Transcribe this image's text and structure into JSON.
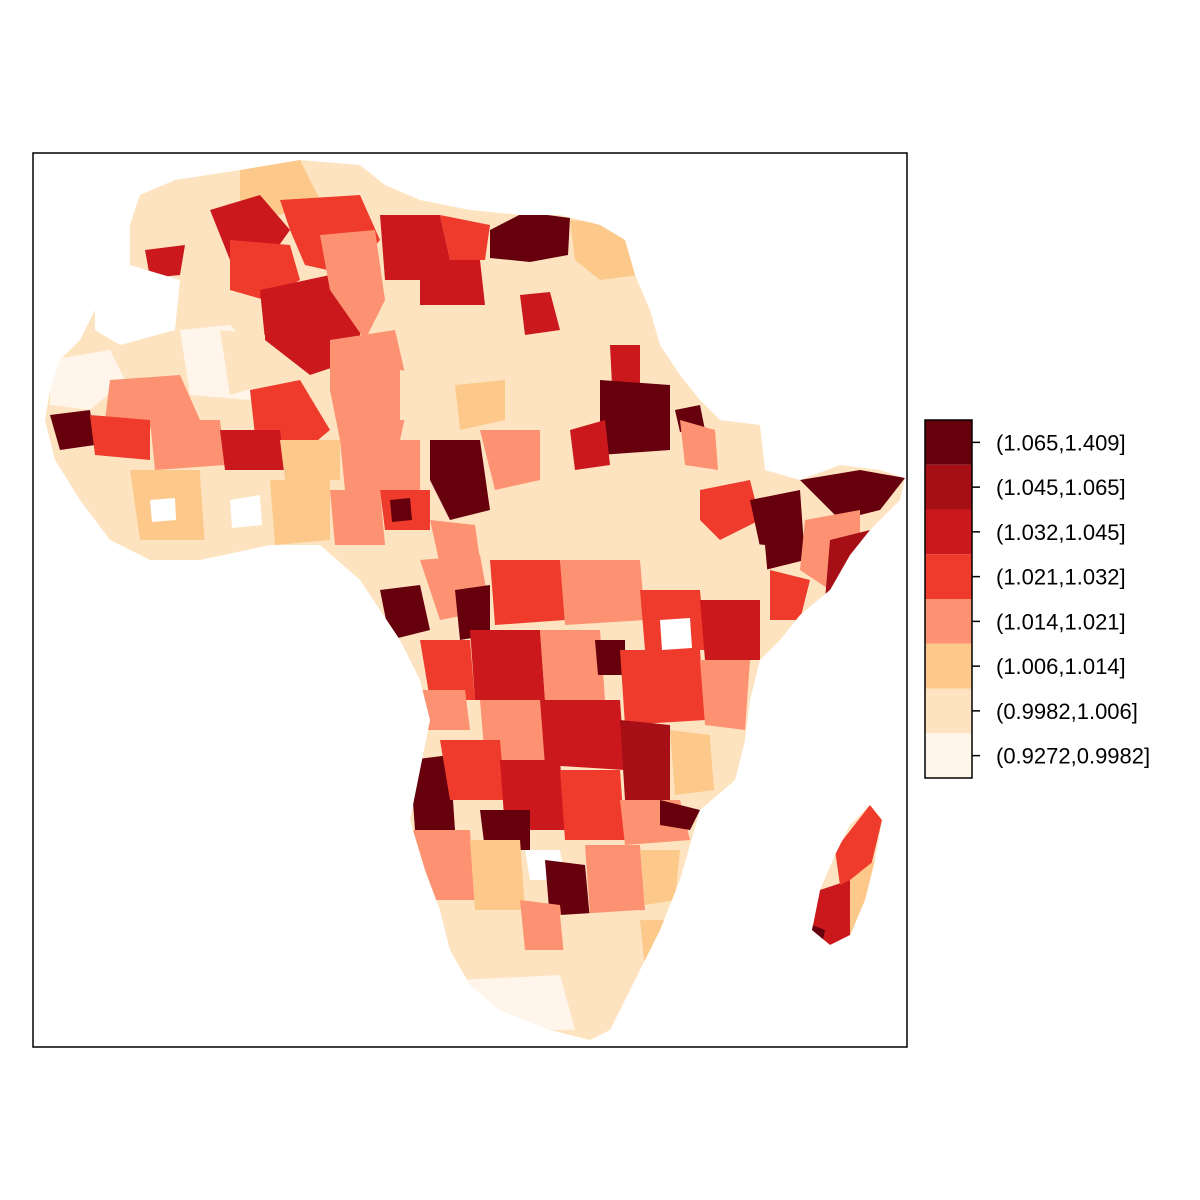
{
  "map": {
    "type": "choropleth",
    "region": "Africa",
    "unit": "sub-national administrative regions"
  },
  "legend": {
    "placement": "right",
    "order": "high-to-low",
    "classes": [
      {
        "label": "(1.065,1.409]",
        "color": "#67000d",
        "min": 1.065,
        "max": 1.409
      },
      {
        "label": "(1.045,1.065]",
        "color": "#a50f15",
        "min": 1.045,
        "max": 1.065
      },
      {
        "label": "(1.032,1.045]",
        "color": "#cb181d",
        "min": 1.032,
        "max": 1.045
      },
      {
        "label": "(1.021,1.032]",
        "color": "#ef3b2c",
        "min": 1.021,
        "max": 1.032
      },
      {
        "label": "(1.014,1.021]",
        "color": "#fc9272",
        "min": 1.014,
        "max": 1.021
      },
      {
        "label": "(1.006,1.014]",
        "color": "#fdc98a",
        "min": 1.006,
        "max": 1.014
      },
      {
        "label": "(0.9982,1.006]",
        "color": "#fde3c0",
        "min": 0.9982,
        "max": 1.006
      },
      {
        "label": "(0.9272,0.9982]",
        "color": "#fff5eb",
        "min": 0.9272,
        "max": 0.9982
      }
    ]
  },
  "colors": {
    "frame": "#000000",
    "missing": "#ffffff"
  }
}
